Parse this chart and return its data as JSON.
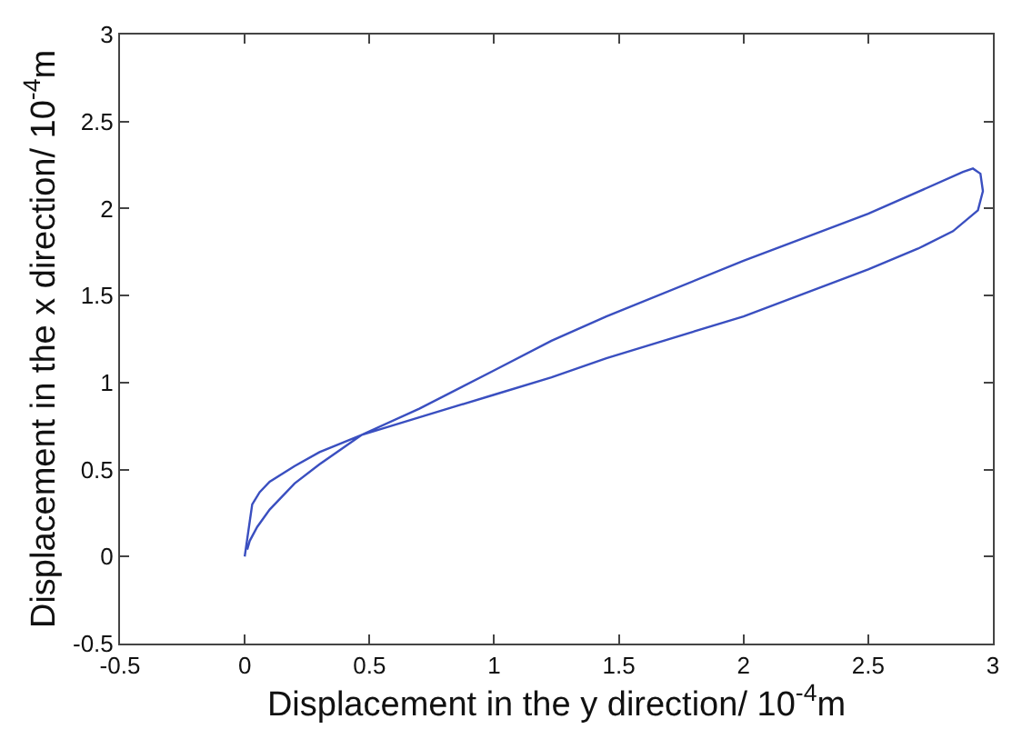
{
  "chart_data": {
    "type": "line",
    "xlabel": "Displacement in the y direction/ 10$^{-4}$m",
    "ylabel": "Displacement in the x direction/ 10$^{-4}$m",
    "xlim": [
      -0.5,
      3
    ],
    "ylim": [
      -0.5,
      3
    ],
    "xticks": [
      -0.5,
      0,
      0.5,
      1,
      1.5,
      2,
      2.5,
      3
    ],
    "yticks": [
      -0.5,
      0,
      0.5,
      1,
      1.5,
      2,
      2.5,
      3
    ],
    "marker": "none",
    "line_style": "solid",
    "series": [
      {
        "color": "#3a4fc0",
        "x": [
          0,
          0.01,
          0.02,
          0.03,
          0.06,
          0.1,
          0.2,
          0.3,
          0.47,
          0.7,
          1.0,
          1.23,
          1.45,
          2.0,
          2.5,
          2.7,
          2.84,
          2.94,
          2.96,
          2.95,
          2.92,
          2.88,
          2.5,
          2.0,
          1.45,
          1.23,
          1.0,
          0.7,
          0.47,
          0.3,
          0.2,
          0.1,
          0.05,
          0.02,
          0.01
        ],
        "values": [
          0,
          0.1,
          0.2,
          0.3,
          0.37,
          0.43,
          0.52,
          0.6,
          0.7,
          0.8,
          0.93,
          1.03,
          1.14,
          1.38,
          1.65,
          1.77,
          1.87,
          1.99,
          2.1,
          2.2,
          2.23,
          2.21,
          1.97,
          1.7,
          1.38,
          1.24,
          1.07,
          0.85,
          0.7,
          0.53,
          0.42,
          0.27,
          0.17,
          0.09,
          0.04
        ]
      }
    ]
  }
}
